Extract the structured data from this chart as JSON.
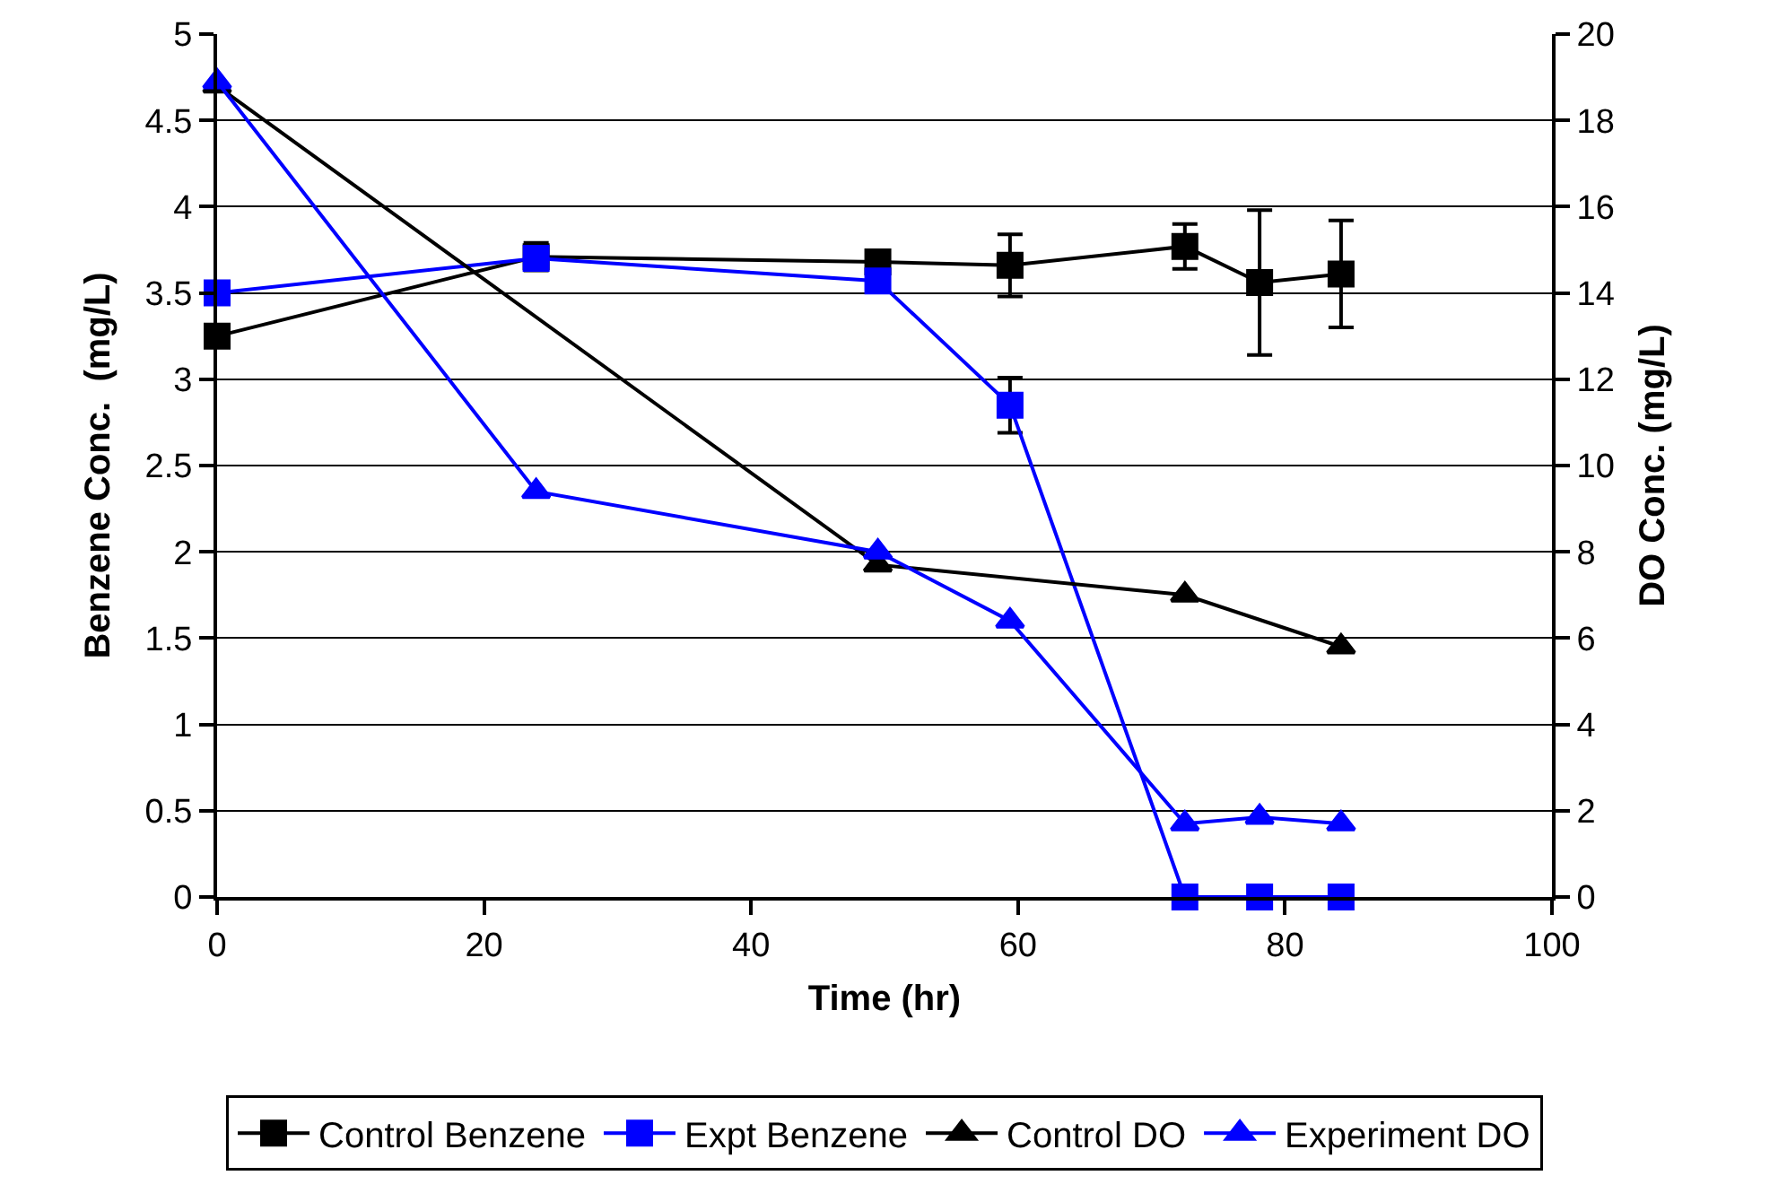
{
  "chart_data": {
    "type": "line",
    "xlabel": "Time (hr)",
    "ylabel": "Benzene Conc.  (mg/L)",
    "y2label": "DO Conc. (mg/L)",
    "x": [
      0,
      23.9,
      49.5,
      59.4,
      72.5,
      78.1,
      84.2
    ],
    "series": [
      {
        "name": "Control Benzene",
        "color": "#000000",
        "marker": "square",
        "values": [
          3.25,
          3.71,
          3.68,
          3.66,
          3.77,
          3.56,
          3.61
        ],
        "errors": [
          null,
          0.08,
          0.04,
          0.18,
          0.13,
          0.42,
          0.31
        ]
      },
      {
        "name": "Expt Benzene",
        "color": "#0000ff",
        "marker": "square",
        "values": [
          3.5,
          3.7,
          3.57,
          2.85,
          0,
          0,
          0
        ],
        "errors": [
          null,
          null,
          null,
          0.16,
          null,
          null,
          null
        ]
      },
      {
        "name": "Control DO",
        "color": "#000000",
        "marker": "triangle",
        "axis": "y2",
        "x": [
          0,
          49.5,
          72.5,
          84.2
        ],
        "values": [
          18.8,
          7.7,
          7.0,
          5.8
        ]
      },
      {
        "name": "Experiment DO",
        "color": "#0000ff",
        "marker": "triangle",
        "axis": "y2",
        "values": [
          18.9,
          9.4,
          8.0,
          6.4,
          1.7,
          1.85,
          1.7
        ]
      }
    ],
    "xlim": [
      0,
      100
    ],
    "xticks": [
      0,
      20,
      40,
      60,
      80,
      100
    ],
    "ylim": [
      0,
      5
    ],
    "yticks": [
      0,
      0.5,
      1,
      1.5,
      2,
      2.5,
      3,
      3.5,
      4,
      4.5,
      5
    ],
    "y2lim": [
      0,
      20
    ],
    "y2ticks": [
      0,
      2,
      4,
      6,
      8,
      10,
      12,
      14,
      16,
      18,
      20
    ],
    "grid": "y",
    "legend": "bottom",
    "line_style": "solid"
  }
}
